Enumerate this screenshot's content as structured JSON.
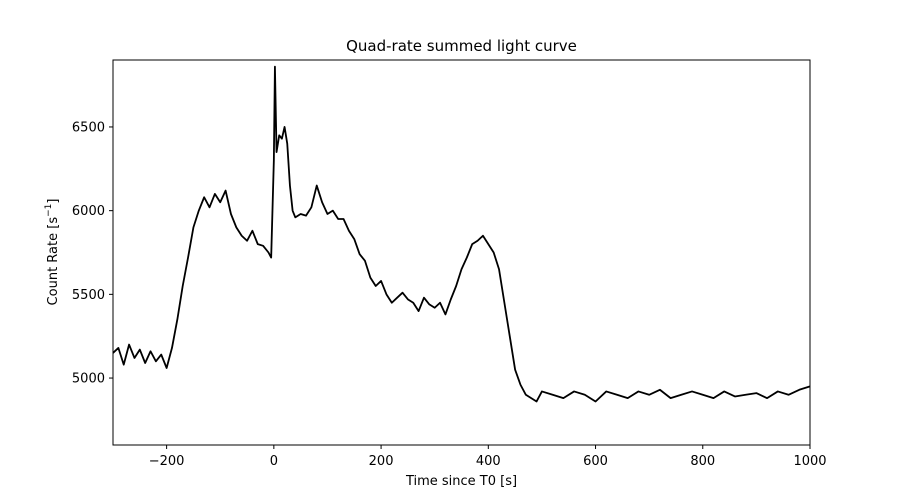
{
  "chart_data": {
    "type": "line",
    "title": "Quad-rate summed light curve",
    "xlabel": "Time since T0 [s]",
    "ylabel_main": "Count Rate [s",
    "ylabel_sup": "−1",
    "ylabel_close": "]",
    "xlim": [
      -300,
      1000
    ],
    "ylim": [
      4600,
      6900
    ],
    "xticks": [
      -200,
      0,
      200,
      400,
      600,
      800,
      1000
    ],
    "xtick_labels": [
      "−200",
      "0",
      "200",
      "400",
      "600",
      "800",
      "1000"
    ],
    "yticks": [
      5000,
      5500,
      6000,
      6500
    ],
    "ytick_labels": [
      "5000",
      "5500",
      "6000",
      "6500"
    ],
    "grid": false,
    "legend": "none",
    "line_color": "#000000",
    "series": [
      {
        "x": [
          -300,
          -290,
          -280,
          -270,
          -260,
          -250,
          -240,
          -230,
          -220,
          -210,
          -200,
          -190,
          -180,
          -170,
          -160,
          -150,
          -140,
          -130,
          -120,
          -110,
          -100,
          -90,
          -80,
          -70,
          -60,
          -50,
          -40,
          -30,
          -20,
          -10,
          -5,
          0,
          2,
          5,
          10,
          15,
          20,
          25,
          30,
          35,
          40,
          50,
          60,
          70,
          80,
          90,
          100,
          110,
          120,
          130,
          140,
          150,
          160,
          170,
          180,
          190,
          200,
          210,
          220,
          230,
          240,
          250,
          260,
          270,
          280,
          290,
          300,
          310,
          320,
          330,
          340,
          350,
          360,
          370,
          380,
          390,
          400,
          410,
          420,
          430,
          440,
          450,
          460,
          470,
          480,
          490,
          500,
          520,
          540,
          560,
          580,
          600,
          620,
          640,
          660,
          680,
          700,
          720,
          740,
          760,
          780,
          800,
          820,
          840,
          860,
          880,
          900,
          920,
          940,
          960,
          980,
          1000
        ],
        "y": [
          5150,
          5180,
          5080,
          5200,
          5120,
          5170,
          5090,
          5160,
          5100,
          5140,
          5060,
          5180,
          5350,
          5550,
          5720,
          5900,
          6000,
          6080,
          6020,
          6100,
          6050,
          6120,
          5980,
          5900,
          5850,
          5820,
          5880,
          5800,
          5790,
          5750,
          5720,
          6300,
          6860,
          6350,
          6450,
          6430,
          6500,
          6400,
          6150,
          6000,
          5960,
          5980,
          5970,
          6020,
          6150,
          6050,
          5980,
          6000,
          5950,
          5950,
          5880,
          5830,
          5740,
          5700,
          5600,
          5550,
          5580,
          5500,
          5450,
          5480,
          5510,
          5470,
          5450,
          5400,
          5480,
          5440,
          5420,
          5450,
          5380,
          5470,
          5550,
          5650,
          5720,
          5800,
          5820,
          5850,
          5800,
          5750,
          5650,
          5450,
          5250,
          5050,
          4960,
          4900,
          4880,
          4860,
          4920,
          4900,
          4880,
          4920,
          4900,
          4860,
          4920,
          4900,
          4880,
          4920,
          4900,
          4930,
          4880,
          4900,
          4920,
          4900,
          4880,
          4920,
          4890,
          4900,
          4910,
          4880,
          4920,
          4900,
          4930,
          4950
        ]
      }
    ]
  }
}
